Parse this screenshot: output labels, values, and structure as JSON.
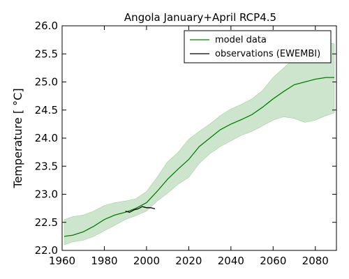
{
  "chart_data": {
    "type": "line",
    "title": "Angola  January+April RCP4.5",
    "xlabel": "",
    "ylabel": "Temperature [ °C]",
    "xlim": [
      1960,
      2090
    ],
    "ylim": [
      22.0,
      26.0
    ],
    "x_ticks": [
      "1960",
      "1980",
      "2000",
      "2020",
      "2040",
      "2060",
      "2080"
    ],
    "y_ticks": [
      "22.0",
      "22.5",
      "23.0",
      "23.5",
      "24.0",
      "24.5",
      "25.0",
      "25.5",
      "26.0"
    ],
    "legend_position": "top-right",
    "grid": false,
    "series": [
      {
        "name": "model data",
        "color": "#008000",
        "band_color": "#cde5cd",
        "x": [
          1961,
          1965,
          1970,
          1975,
          1980,
          1985,
          1990,
          1995,
          2000,
          2005,
          2010,
          2015,
          2020,
          2025,
          2030,
          2035,
          2040,
          2045,
          2050,
          2055,
          2060,
          2065,
          2070,
          2075,
          2080,
          2085,
          2089
        ],
        "values": [
          22.25,
          22.27,
          22.33,
          22.43,
          22.55,
          22.63,
          22.68,
          22.75,
          22.85,
          23.05,
          23.27,
          23.45,
          23.62,
          23.85,
          24.0,
          24.15,
          24.25,
          24.33,
          24.42,
          24.55,
          24.7,
          24.83,
          24.95,
          25.0,
          25.05,
          25.08,
          25.08
        ],
        "lower": [
          22.1,
          22.15,
          22.18,
          22.25,
          22.35,
          22.45,
          22.55,
          22.62,
          22.7,
          22.88,
          23.02,
          23.18,
          23.3,
          23.55,
          23.72,
          23.85,
          23.95,
          24.05,
          24.12,
          24.22,
          24.32,
          24.38,
          24.35,
          24.28,
          24.32,
          24.4,
          24.45
        ],
        "upper": [
          22.55,
          22.6,
          22.63,
          22.7,
          22.8,
          22.85,
          22.88,
          22.92,
          23.05,
          23.3,
          23.58,
          23.75,
          23.98,
          24.12,
          24.25,
          24.4,
          24.52,
          24.6,
          24.7,
          24.85,
          25.08,
          25.25,
          25.42,
          25.55,
          25.65,
          25.7,
          25.68
        ]
      },
      {
        "name": "observations (EWEMBI)",
        "color": "#000000",
        "x": [
          1990,
          1992,
          1994,
          1996,
          1998,
          2000,
          2002,
          2004
        ],
        "values": [
          22.7,
          22.68,
          22.72,
          22.74,
          22.78,
          22.76,
          22.76,
          22.74
        ]
      }
    ]
  }
}
